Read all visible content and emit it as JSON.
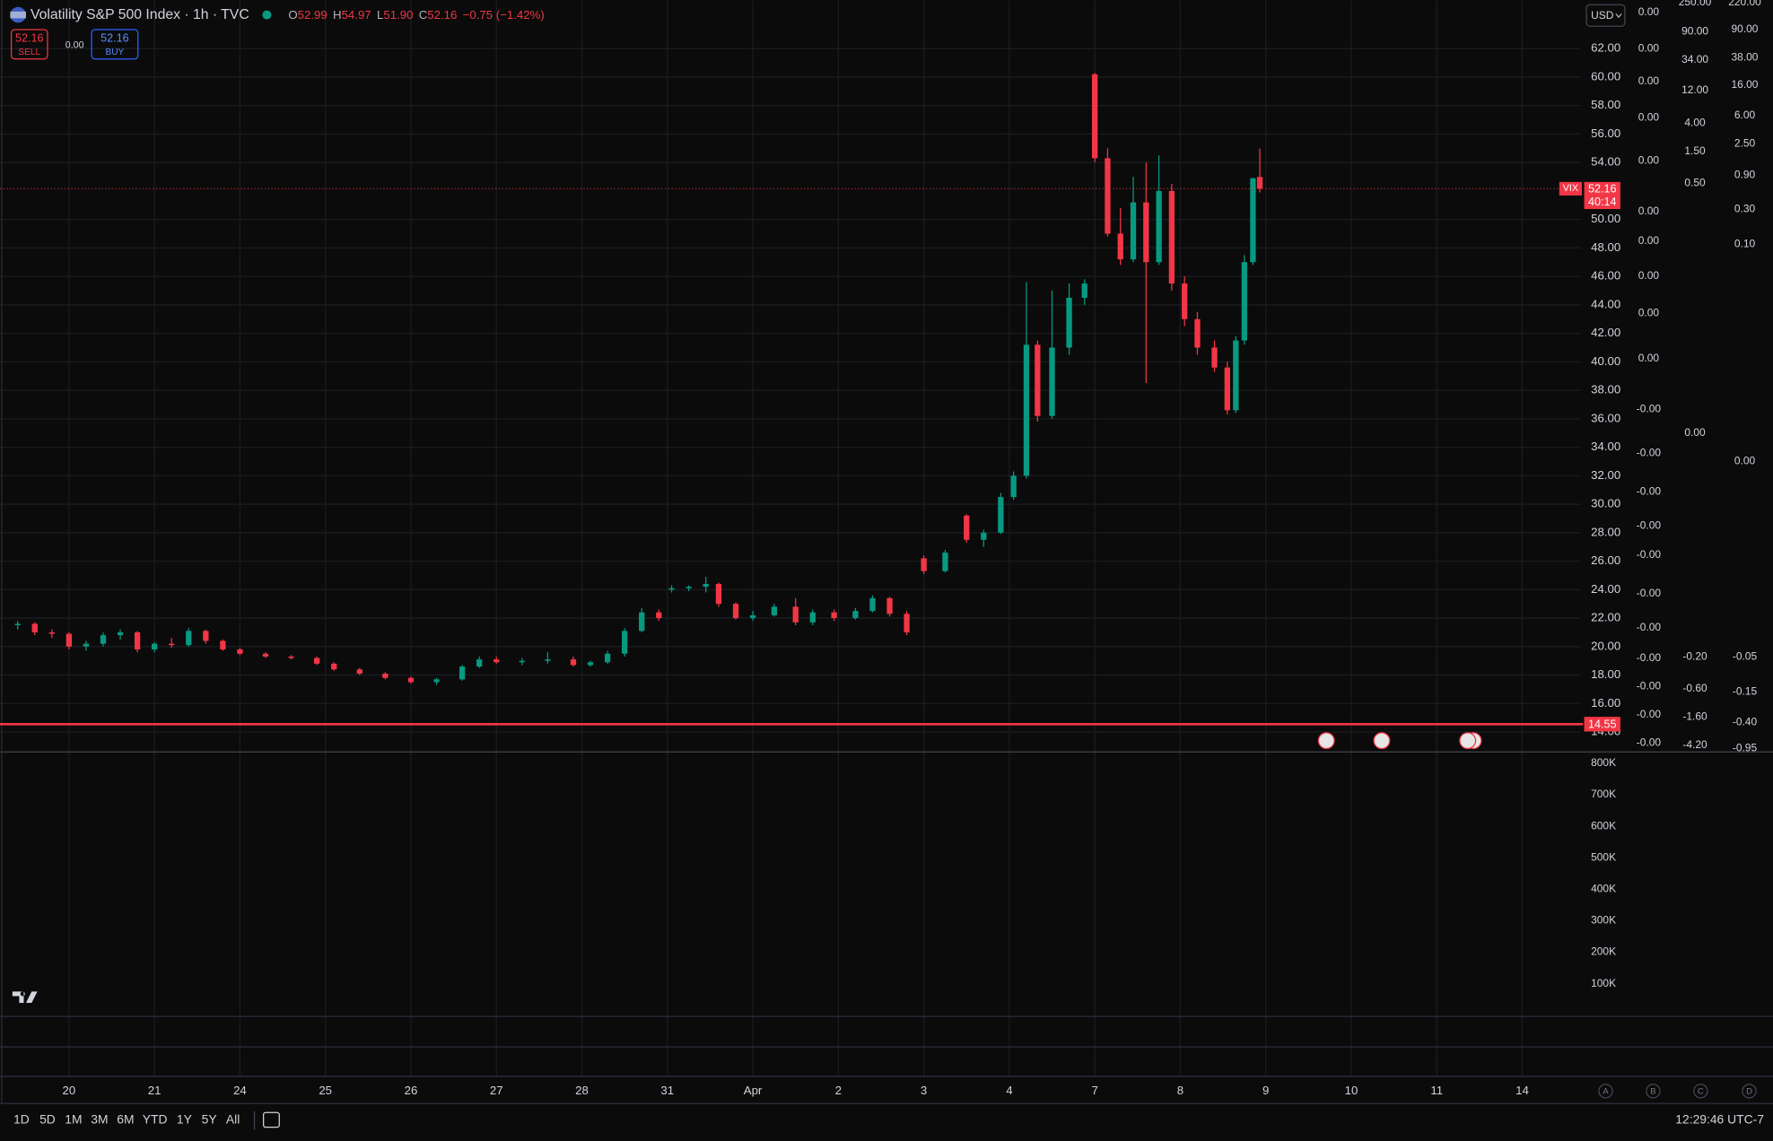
{
  "header": {
    "symbol": "Volatility S&P 500 Index · 1h · TVC",
    "ohlc": {
      "o_label": "O",
      "open": "52.99",
      "h_label": "H",
      "high": "54.97",
      "l_label": "L",
      "low": "51.90",
      "c_label": "C",
      "close": "52.16",
      "change": "−0.75 (−1.42%)"
    }
  },
  "trade": {
    "sell_price": "52.16",
    "sell_label": "SELL",
    "spread": "0.00",
    "buy_price": "52.16",
    "buy_label": "BUY"
  },
  "currency": "USD",
  "chart_data": {
    "type": "candlestick",
    "up_color": "#089981",
    "down_color": "#f23645",
    "grid": true,
    "x": [
      -0.6,
      -0.4,
      -0.2,
      0.0,
      0.2,
      0.4,
      0.6,
      0.8,
      1.0,
      1.2,
      1.4,
      1.6,
      1.8,
      2.0,
      2.3,
      2.6,
      2.9,
      3.1,
      3.4,
      3.7,
      4.0,
      4.3,
      4.6,
      4.8,
      5.0,
      5.3,
      5.6,
      5.9,
      6.1,
      6.3,
      6.5,
      6.7,
      6.9,
      7.05,
      7.25,
      7.45,
      7.6,
      7.8,
      8.0,
      8.25,
      8.5,
      8.7,
      8.95,
      9.2,
      9.4,
      9.6,
      9.8,
      10.0,
      10.25,
      10.5,
      10.7,
      10.9,
      11.05,
      11.2,
      11.33,
      11.5,
      11.7,
      11.88,
      12.0,
      12.15,
      12.3,
      12.45,
      12.6,
      12.75,
      12.9,
      13.05,
      13.2,
      13.4,
      13.55,
      13.65,
      13.75,
      13.85,
      13.93
    ],
    "open": [
      21.5,
      21.6,
      21.0,
      20.9,
      20.0,
      20.2,
      20.8,
      21.0,
      19.8,
      20.2,
      20.1,
      21.1,
      20.4,
      19.8,
      19.5,
      19.3,
      19.2,
      18.8,
      18.4,
      18.1,
      17.8,
      17.5,
      17.7,
      18.6,
      19.1,
      18.9,
      19.0,
      19.1,
      18.7,
      18.9,
      19.5,
      21.1,
      22.4,
      24.0,
      24.1,
      24.2,
      24.4,
      23.0,
      22.0,
      22.2,
      22.8,
      21.7,
      22.4,
      22.0,
      22.5,
      23.4,
      22.3,
      26.2,
      25.3,
      29.2,
      27.5,
      28.0,
      30.5,
      32.0,
      41.2,
      36.2,
      41.0,
      44.5,
      60.2,
      54.3,
      49.0,
      47.2,
      51.2,
      47.0,
      52.0,
      45.5,
      43.0,
      41.0,
      39.6,
      36.6,
      41.5,
      47.0,
      52.99
    ],
    "high": [
      21.8,
      21.7,
      21.2,
      21.0,
      20.4,
      21.0,
      21.2,
      21.1,
      20.3,
      20.6,
      21.3,
      21.2,
      20.5,
      19.9,
      19.6,
      19.4,
      19.3,
      18.9,
      18.5,
      18.2,
      17.9,
      17.8,
      18.7,
      19.3,
      19.3,
      19.2,
      19.6,
      19.3,
      19.0,
      19.7,
      21.3,
      22.7,
      22.6,
      24.3,
      24.3,
      24.9,
      24.5,
      23.1,
      22.5,
      23.0,
      23.4,
      22.6,
      22.6,
      22.7,
      23.6,
      23.5,
      22.5,
      26.4,
      26.8,
      29.3,
      28.2,
      30.8,
      32.3,
      45.6,
      41.5,
      45.0,
      45.5,
      45.8,
      60.3,
      55.0,
      50.8,
      53.0,
      54.0,
      54.5,
      52.5,
      46.0,
      43.5,
      41.5,
      40.0,
      41.8,
      47.5,
      52.9,
      54.97
    ],
    "low": [
      21.2,
      20.8,
      20.6,
      19.8,
      19.7,
      20.0,
      20.5,
      19.6,
      19.6,
      19.9,
      20.0,
      20.2,
      19.7,
      19.4,
      19.2,
      19.1,
      18.7,
      18.3,
      18.0,
      17.7,
      17.4,
      17.3,
      17.6,
      18.5,
      18.8,
      18.7,
      18.8,
      18.6,
      18.6,
      18.8,
      19.3,
      21.0,
      21.8,
      23.8,
      23.9,
      23.8,
      22.8,
      21.9,
      21.8,
      22.1,
      21.5,
      21.5,
      21.8,
      21.9,
      22.4,
      22.1,
      20.8,
      25.1,
      25.2,
      27.3,
      27.0,
      27.9,
      30.3,
      31.8,
      35.8,
      36.0,
      40.5,
      44.0,
      54.0,
      48.8,
      46.8,
      47.0,
      38.5,
      46.8,
      45.0,
      42.5,
      40.5,
      39.3,
      36.3,
      36.4,
      41.2,
      46.8,
      51.9
    ],
    "close": [
      21.6,
      21.0,
      20.9,
      20.0,
      20.2,
      20.8,
      21.0,
      19.8,
      20.2,
      20.1,
      21.1,
      20.4,
      19.8,
      19.5,
      19.3,
      19.2,
      18.8,
      18.4,
      18.1,
      17.8,
      17.5,
      17.7,
      18.6,
      19.1,
      18.9,
      19.0,
      19.1,
      18.7,
      18.9,
      19.5,
      21.1,
      22.4,
      22.0,
      24.1,
      24.2,
      24.4,
      23.0,
      22.0,
      22.2,
      22.8,
      21.7,
      22.4,
      22.0,
      22.5,
      23.4,
      22.3,
      21.0,
      25.3,
      26.6,
      27.5,
      28.0,
      30.5,
      32.0,
      41.2,
      36.2,
      41.0,
      44.5,
      45.5,
      54.3,
      49.0,
      47.2,
      51.2,
      47.0,
      52.0,
      45.5,
      43.0,
      41.0,
      39.6,
      36.6,
      41.5,
      47.0,
      52.9,
      52.16
    ],
    "xlim": [
      -0.807,
      17.685
    ],
    "xticks": [
      {
        "value": 0,
        "label": "20"
      },
      {
        "value": 1,
        "label": "21"
      },
      {
        "value": 2,
        "label": "24"
      },
      {
        "value": 3,
        "label": "25"
      },
      {
        "value": 4,
        "label": "26"
      },
      {
        "value": 5,
        "label": "27"
      },
      {
        "value": 6,
        "label": "28"
      },
      {
        "value": 7,
        "label": "31"
      },
      {
        "value": 8,
        "label": "Apr"
      },
      {
        "value": 9,
        "label": "2"
      },
      {
        "value": 10,
        "label": "3"
      },
      {
        "value": 11,
        "label": "4"
      },
      {
        "value": 12,
        "label": "7"
      },
      {
        "value": 13,
        "label": "8"
      },
      {
        "value": 14,
        "label": "9"
      },
      {
        "value": 15,
        "label": "10"
      },
      {
        "value": 16,
        "label": "11"
      },
      {
        "value": 17,
        "label": "14"
      }
    ],
    "ylim": [
      12.6,
      65.4
    ],
    "yticks": [
      {
        "value": 14,
        "label": "14.00"
      },
      {
        "value": 16,
        "label": "16.00"
      },
      {
        "value": 18,
        "label": "18.00"
      },
      {
        "value": 20,
        "label": "20.00"
      },
      {
        "value": 22,
        "label": "22.00"
      },
      {
        "value": 24,
        "label": "24.00"
      },
      {
        "value": 26,
        "label": "26.00"
      },
      {
        "value": 28,
        "label": "28.00"
      },
      {
        "value": 30,
        "label": "30.00"
      },
      {
        "value": 32,
        "label": "32.00"
      },
      {
        "value": 34,
        "label": "34.00"
      },
      {
        "value": 36,
        "label": "36.00"
      },
      {
        "value": 38,
        "label": "38.00"
      },
      {
        "value": 40,
        "label": "40.00"
      },
      {
        "value": 42,
        "label": "42.00"
      },
      {
        "value": 44,
        "label": "44.00"
      },
      {
        "value": 46,
        "label": "46.00"
      },
      {
        "value": 48,
        "label": "48.00"
      },
      {
        "value": 50,
        "label": "50.00"
      },
      {
        "value": 54,
        "label": "54.00"
      },
      {
        "value": 56,
        "label": "56.00"
      },
      {
        "value": 58,
        "label": "58.00"
      },
      {
        "value": 60,
        "label": "60.00"
      },
      {
        "value": 62,
        "label": "62.00"
      }
    ],
    "last_price": {
      "value": 52.16,
      "label": "52.16",
      "symbol": "VIX",
      "countdown": "40:14"
    },
    "price_line": {
      "value": 14.55,
      "label": "14.55"
    },
    "volume_lim": [
      -4000,
      829000
    ],
    "volume_ticks": [
      {
        "value": 100000,
        "label": "100K"
      },
      {
        "value": 200000,
        "label": "200K"
      },
      {
        "value": 300000,
        "label": "300K"
      },
      {
        "value": 400000,
        "label": "400K"
      },
      {
        "value": 500000,
        "label": "500K"
      },
      {
        "value": 600000,
        "label": "600K"
      },
      {
        "value": 700000,
        "label": "700K"
      },
      {
        "value": 800000,
        "label": "800K"
      }
    ]
  },
  "indicator_scales": [
    [
      "0.00",
      "0.00",
      "0.00",
      "0.00",
      "0.00",
      "0.00",
      "0.00",
      "0.00",
      "0.00",
      "0.00",
      "-0.00",
      "-0.00",
      "-0.00",
      "-0.00",
      "-0.00",
      "-0.00",
      "-0.00",
      "-0.00",
      "-0.00",
      "-0.00",
      "-0.00"
    ],
    [
      "250.00",
      "90.00",
      "34.00",
      "12.00",
      "4.00",
      "1.50",
      "0.50",
      "0.00",
      "-0.20",
      "-0.60",
      "-1.60",
      "-4.20"
    ],
    [
      "220.00",
      "90.00",
      "38.00",
      "16.00",
      "6.00",
      "2.50",
      "0.90",
      "0.30",
      "0.10",
      "0.00",
      "-0.05",
      "-0.15",
      "-0.40",
      "-0.95"
    ]
  ],
  "scale_buttons": [
    "A",
    "B",
    "C",
    "D"
  ],
  "periods": [
    "1D",
    "5D",
    "1M",
    "3M",
    "6M",
    "YTD",
    "1Y",
    "5Y",
    "All"
  ],
  "clock": "12:29:46 UTC-7"
}
